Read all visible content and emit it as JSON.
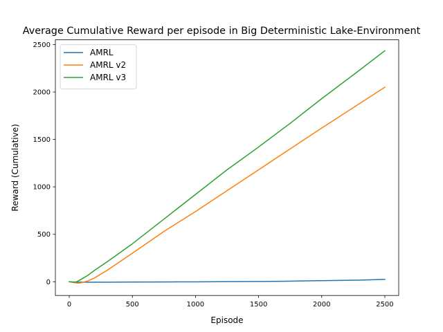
{
  "chart_data": {
    "type": "line",
    "title": "Average Cumulative Reward per episode in Big Deterministic Lake-Environment",
    "xlabel": "Episode",
    "ylabel": "Reward (Cumulative)",
    "xlim": [
      -110,
      2610
    ],
    "ylim": [
      -145,
      2550
    ],
    "xticks": [
      0,
      500,
      1000,
      1500,
      2000,
      2500
    ],
    "yticks": [
      0,
      500,
      1000,
      1500,
      2000,
      2500
    ],
    "grid": false,
    "legend_position": "top-left",
    "series": [
      {
        "name": "AMRL",
        "color": "#1f77b4",
        "points": [
          [
            0,
            0
          ],
          [
            50,
            -5
          ],
          [
            100,
            -5
          ],
          [
            300,
            -5
          ],
          [
            500,
            -3
          ],
          [
            800,
            -2
          ],
          [
            1000,
            -1
          ],
          [
            1200,
            0
          ],
          [
            1500,
            2
          ],
          [
            1700,
            5
          ],
          [
            1900,
            10
          ],
          [
            2100,
            13
          ],
          [
            2300,
            17
          ],
          [
            2500,
            25
          ]
        ]
      },
      {
        "name": "AMRL v2",
        "color": "#ff7f0e",
        "points": [
          [
            0,
            0
          ],
          [
            40,
            -10
          ],
          [
            70,
            -15
          ],
          [
            100,
            -10
          ],
          [
            150,
            10
          ],
          [
            200,
            40
          ],
          [
            300,
            120
          ],
          [
            500,
            300
          ],
          [
            750,
            530
          ],
          [
            1000,
            740
          ],
          [
            1250,
            960
          ],
          [
            1500,
            1180
          ],
          [
            1750,
            1400
          ],
          [
            2000,
            1620
          ],
          [
            2250,
            1835
          ],
          [
            2500,
            2050
          ]
        ]
      },
      {
        "name": "AMRL v3",
        "color": "#2ca02c",
        "points": [
          [
            0,
            0
          ],
          [
            40,
            -5
          ],
          [
            60,
            0
          ],
          [
            100,
            30
          ],
          [
            150,
            70
          ],
          [
            200,
            120
          ],
          [
            300,
            210
          ],
          [
            500,
            400
          ],
          [
            750,
            660
          ],
          [
            1000,
            920
          ],
          [
            1250,
            1180
          ],
          [
            1500,
            1420
          ],
          [
            1750,
            1670
          ],
          [
            2000,
            1930
          ],
          [
            2250,
            2180
          ],
          [
            2500,
            2435
          ]
        ]
      }
    ]
  }
}
